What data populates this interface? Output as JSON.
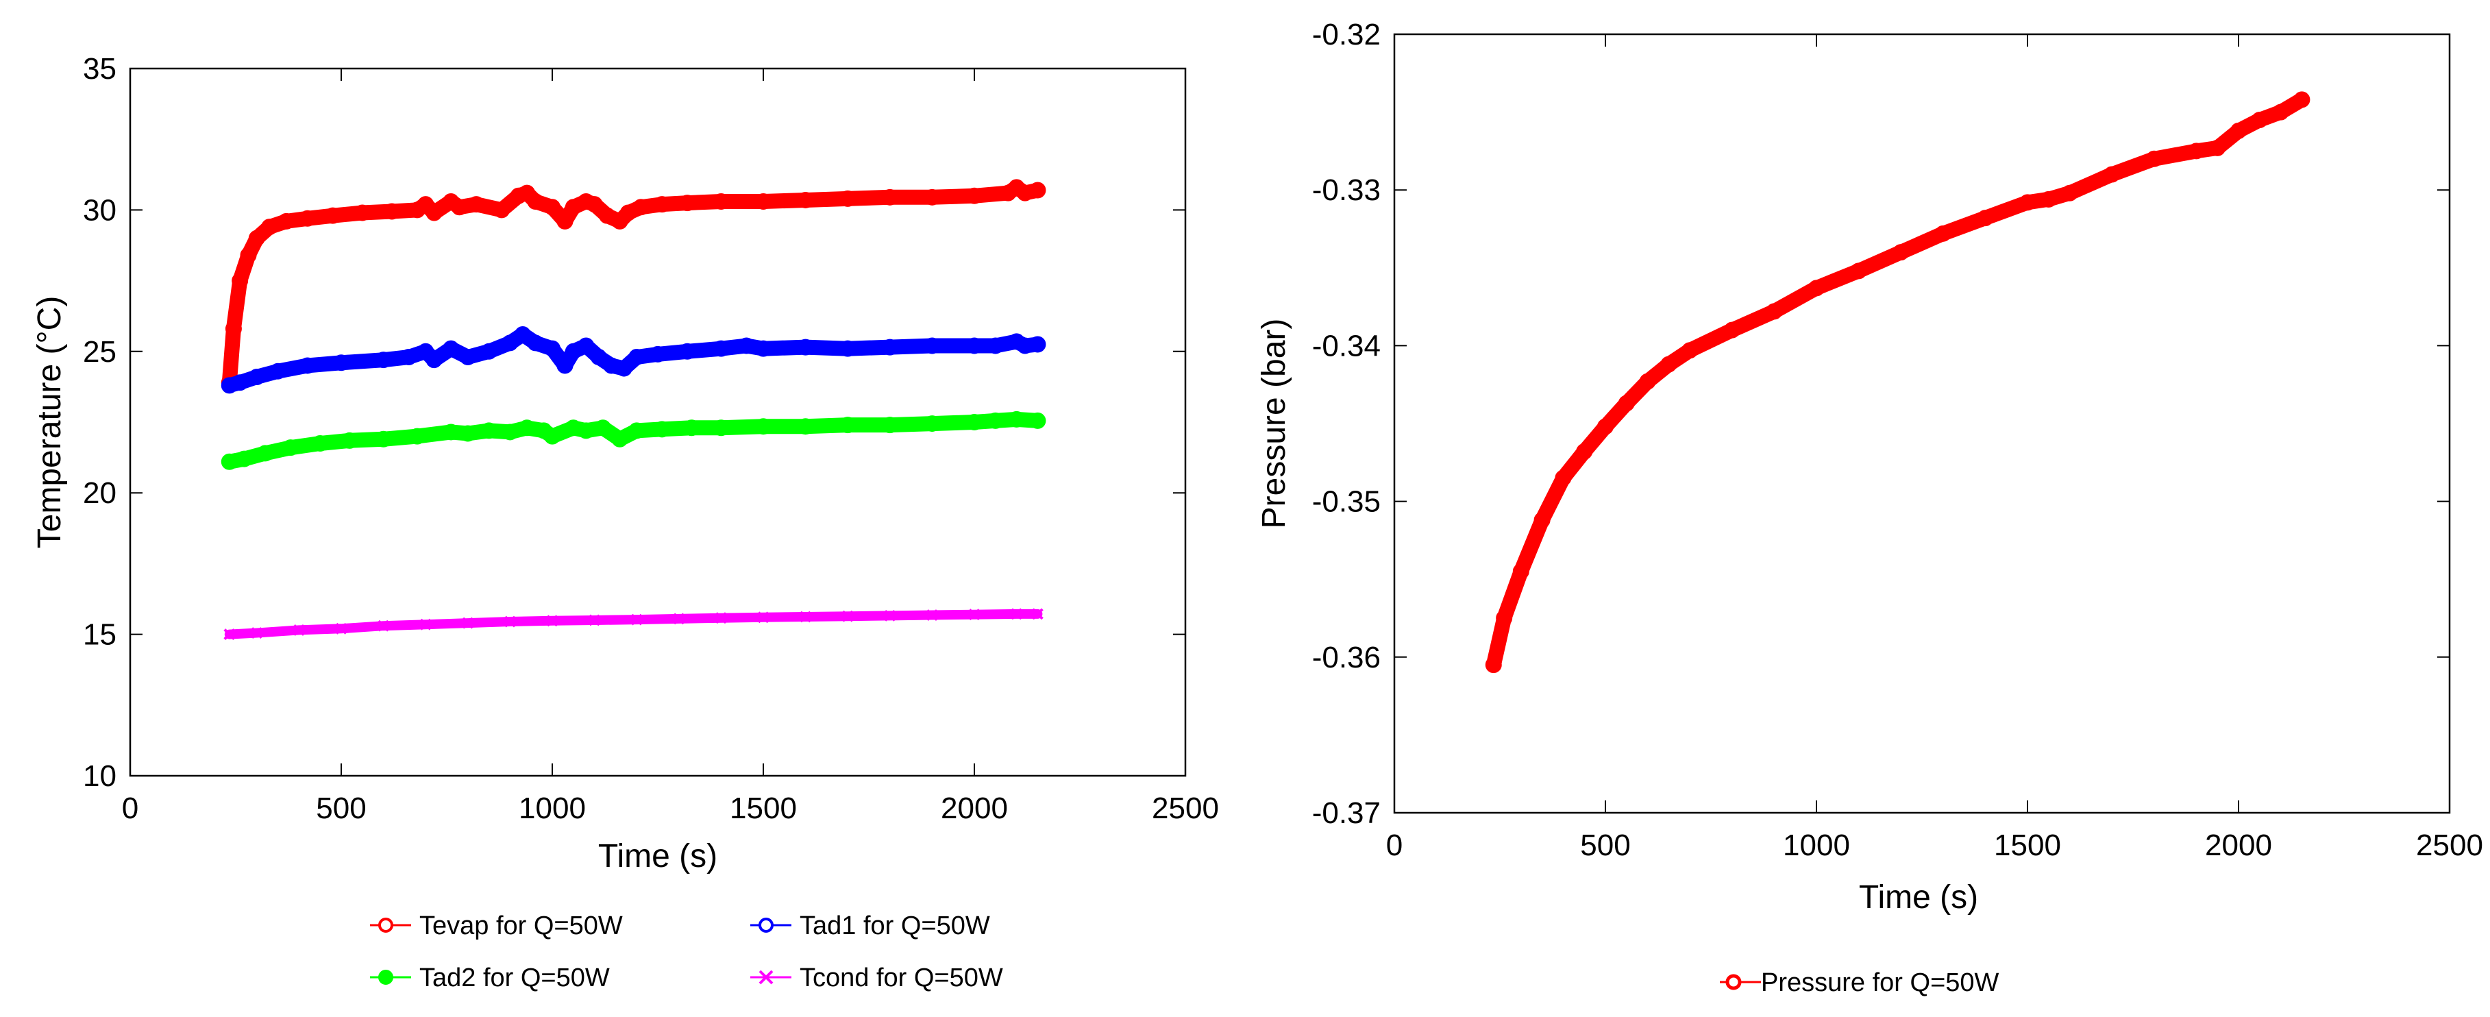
{
  "chart_data": [
    {
      "type": "line",
      "title": "",
      "xlabel": "Time (s)",
      "ylabel": "Temperature  (°C)",
      "xlim": [
        0,
        2500
      ],
      "ylim": [
        10,
        35
      ],
      "xticks": [
        0,
        500,
        1000,
        1500,
        2000,
        2500
      ],
      "yticks": [
        10,
        15,
        20,
        25,
        30,
        35
      ],
      "xtick_labels": [
        "0",
        "500",
        "1000",
        "1500",
        "2000",
        "2500"
      ],
      "ytick_labels": [
        "10",
        "15",
        "20",
        "25",
        "30",
        "35"
      ],
      "grid": false,
      "legend_position": "bottom",
      "series": [
        {
          "name": "Tevap for Q=50W",
          "color": "#ff0000",
          "marker": "circle",
          "x": [
            235,
            245,
            260,
            280,
            300,
            330,
            370,
            420,
            480,
            550,
            620,
            680,
            700,
            720,
            760,
            780,
            820,
            880,
            920,
            940,
            960,
            1000,
            1030,
            1050,
            1080,
            1100,
            1130,
            1160,
            1180,
            1210,
            1260,
            1320,
            1400,
            1500,
            1600,
            1700,
            1800,
            1900,
            2000,
            2080,
            2100,
            2120,
            2150
          ],
          "y": [
            23.9,
            25.8,
            27.5,
            28.4,
            29.0,
            29.4,
            29.6,
            29.7,
            29.8,
            29.9,
            29.95,
            30.0,
            30.2,
            29.9,
            30.3,
            30.1,
            30.2,
            30.0,
            30.5,
            30.6,
            30.3,
            30.1,
            29.6,
            30.1,
            30.3,
            30.2,
            29.8,
            29.6,
            29.9,
            30.1,
            30.2,
            30.25,
            30.3,
            30.3,
            30.35,
            30.4,
            30.45,
            30.45,
            30.5,
            30.6,
            30.8,
            30.6,
            30.7
          ]
        },
        {
          "name": "Tad1 for Q=50W",
          "color": "#0000ff",
          "marker": "circle",
          "x": [
            235,
            260,
            300,
            350,
            420,
            500,
            600,
            660,
            700,
            720,
            760,
            800,
            850,
            900,
            930,
            960,
            1000,
            1030,
            1050,
            1080,
            1110,
            1140,
            1170,
            1200,
            1250,
            1320,
            1400,
            1460,
            1500,
            1600,
            1700,
            1800,
            1900,
            2000,
            2050,
            2100,
            2120,
            2150
          ],
          "y": [
            23.8,
            23.9,
            24.1,
            24.3,
            24.5,
            24.6,
            24.7,
            24.8,
            25.0,
            24.7,
            25.1,
            24.8,
            25.0,
            25.3,
            25.6,
            25.3,
            25.1,
            24.5,
            25.0,
            25.2,
            24.8,
            24.5,
            24.4,
            24.8,
            24.9,
            25.0,
            25.1,
            25.2,
            25.1,
            25.15,
            25.1,
            25.15,
            25.2,
            25.2,
            25.2,
            25.35,
            25.2,
            25.25
          ]
        },
        {
          "name": "Tad2 for Q=50W",
          "color": "#00ff00",
          "marker": "filled-circle",
          "x": [
            235,
            270,
            320,
            380,
            450,
            520,
            600,
            680,
            760,
            800,
            850,
            900,
            940,
            980,
            1000,
            1050,
            1080,
            1120,
            1160,
            1200,
            1260,
            1330,
            1400,
            1500,
            1600,
            1700,
            1800,
            1900,
            2000,
            2050,
            2100,
            2150
          ],
          "y": [
            21.1,
            21.2,
            21.4,
            21.6,
            21.75,
            21.85,
            21.9,
            22.0,
            22.15,
            22.1,
            22.2,
            22.15,
            22.3,
            22.2,
            22.0,
            22.3,
            22.2,
            22.3,
            21.9,
            22.2,
            22.25,
            22.3,
            22.3,
            22.35,
            22.35,
            22.4,
            22.4,
            22.45,
            22.5,
            22.55,
            22.6,
            22.55
          ]
        },
        {
          "name": "Tcond for Q=50W",
          "color": "#ff00ff",
          "marker": "x",
          "x": [
            235,
            300,
            400,
            500,
            600,
            700,
            800,
            900,
            1000,
            1100,
            1200,
            1300,
            1400,
            1500,
            1600,
            1700,
            1800,
            1900,
            2000,
            2100,
            2150
          ],
          "y": [
            15.0,
            15.05,
            15.15,
            15.2,
            15.3,
            15.35,
            15.4,
            15.45,
            15.48,
            15.5,
            15.52,
            15.55,
            15.58,
            15.6,
            15.62,
            15.64,
            15.66,
            15.68,
            15.7,
            15.72,
            15.72
          ]
        }
      ]
    },
    {
      "type": "line",
      "title": "",
      "xlabel": "Time (s)",
      "ylabel": "Pressure  (bar)",
      "xlim": [
        0,
        2500
      ],
      "ylim": [
        -0.37,
        -0.32
      ],
      "xticks": [
        0,
        500,
        1000,
        1500,
        2000,
        2500
      ],
      "yticks": [
        -0.37,
        -0.36,
        -0.35,
        -0.34,
        -0.33,
        -0.32
      ],
      "xtick_labels": [
        "0",
        "500",
        "1000",
        "1500",
        "2000",
        "2500"
      ],
      "ytick_labels": [
        "-0.37",
        "-0.36",
        "-0.35",
        "-0.34",
        "-0.33",
        "-0.32"
      ],
      "grid": false,
      "legend_position": "bottom",
      "series": [
        {
          "name": "Pressure for Q=50W",
          "color": "#ff0000",
          "marker": "circle",
          "x": [
            235,
            260,
            300,
            350,
            400,
            450,
            500,
            550,
            600,
            650,
            700,
            800,
            900,
            1000,
            1100,
            1200,
            1300,
            1400,
            1500,
            1550,
            1600,
            1700,
            1800,
            1900,
            1950,
            2000,
            2050,
            2100,
            2150
          ],
          "y": [
            -0.3605,
            -0.3575,
            -0.3545,
            -0.3512,
            -0.3485,
            -0.3468,
            -0.3452,
            -0.3437,
            -0.3423,
            -0.3412,
            -0.3403,
            -0.339,
            -0.3378,
            -0.3363,
            -0.3352,
            -0.334,
            -0.3328,
            -0.3318,
            -0.3308,
            -0.3306,
            -0.3302,
            -0.329,
            -0.328,
            -0.3275,
            -0.3273,
            -0.3262,
            -0.3255,
            -0.325,
            -0.3242
          ]
        }
      ]
    }
  ]
}
